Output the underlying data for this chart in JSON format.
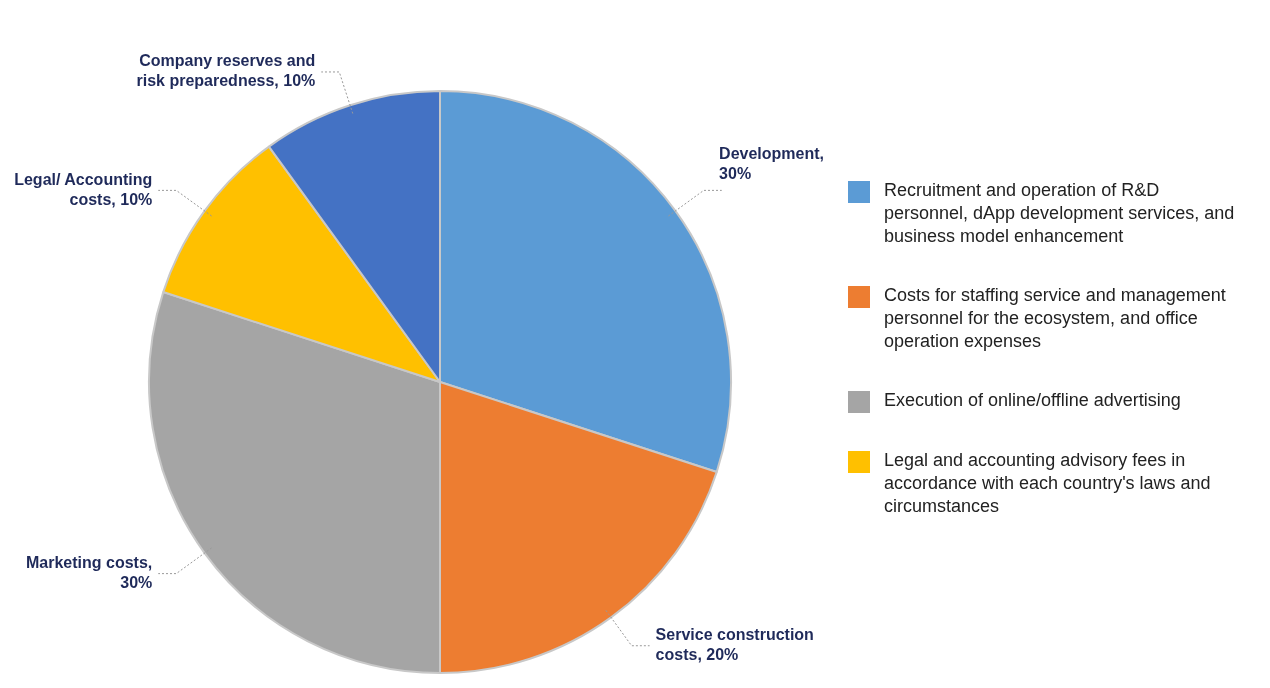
{
  "chart_data": {
    "type": "pie",
    "categories": [
      "Recruitment and operation of R&D personnel, dApp development services, and business model enhancement",
      "Costs for staffing service and management personnel for the ecosystem, and office operation expenses",
      "Execution of online/offline advertising",
      "Legal and accounting advisory fees in accordance with each country's laws and circumstances",
      null
    ],
    "values": [
      30,
      20,
      30,
      10,
      10
    ],
    "colors": [
      "#5b9bd5",
      "#ed7d31",
      "#a5a5a5",
      "#ffc000",
      "#4472c4"
    ],
    "value_labels": [
      "Development, 30%",
      "Service construction costs, 20%",
      "Marketing costs, 30%",
      "Legal/ Accounting costs, 10%",
      "Company reserves and risk preparedness, 10%"
    ],
    "legend": "right"
  }
}
